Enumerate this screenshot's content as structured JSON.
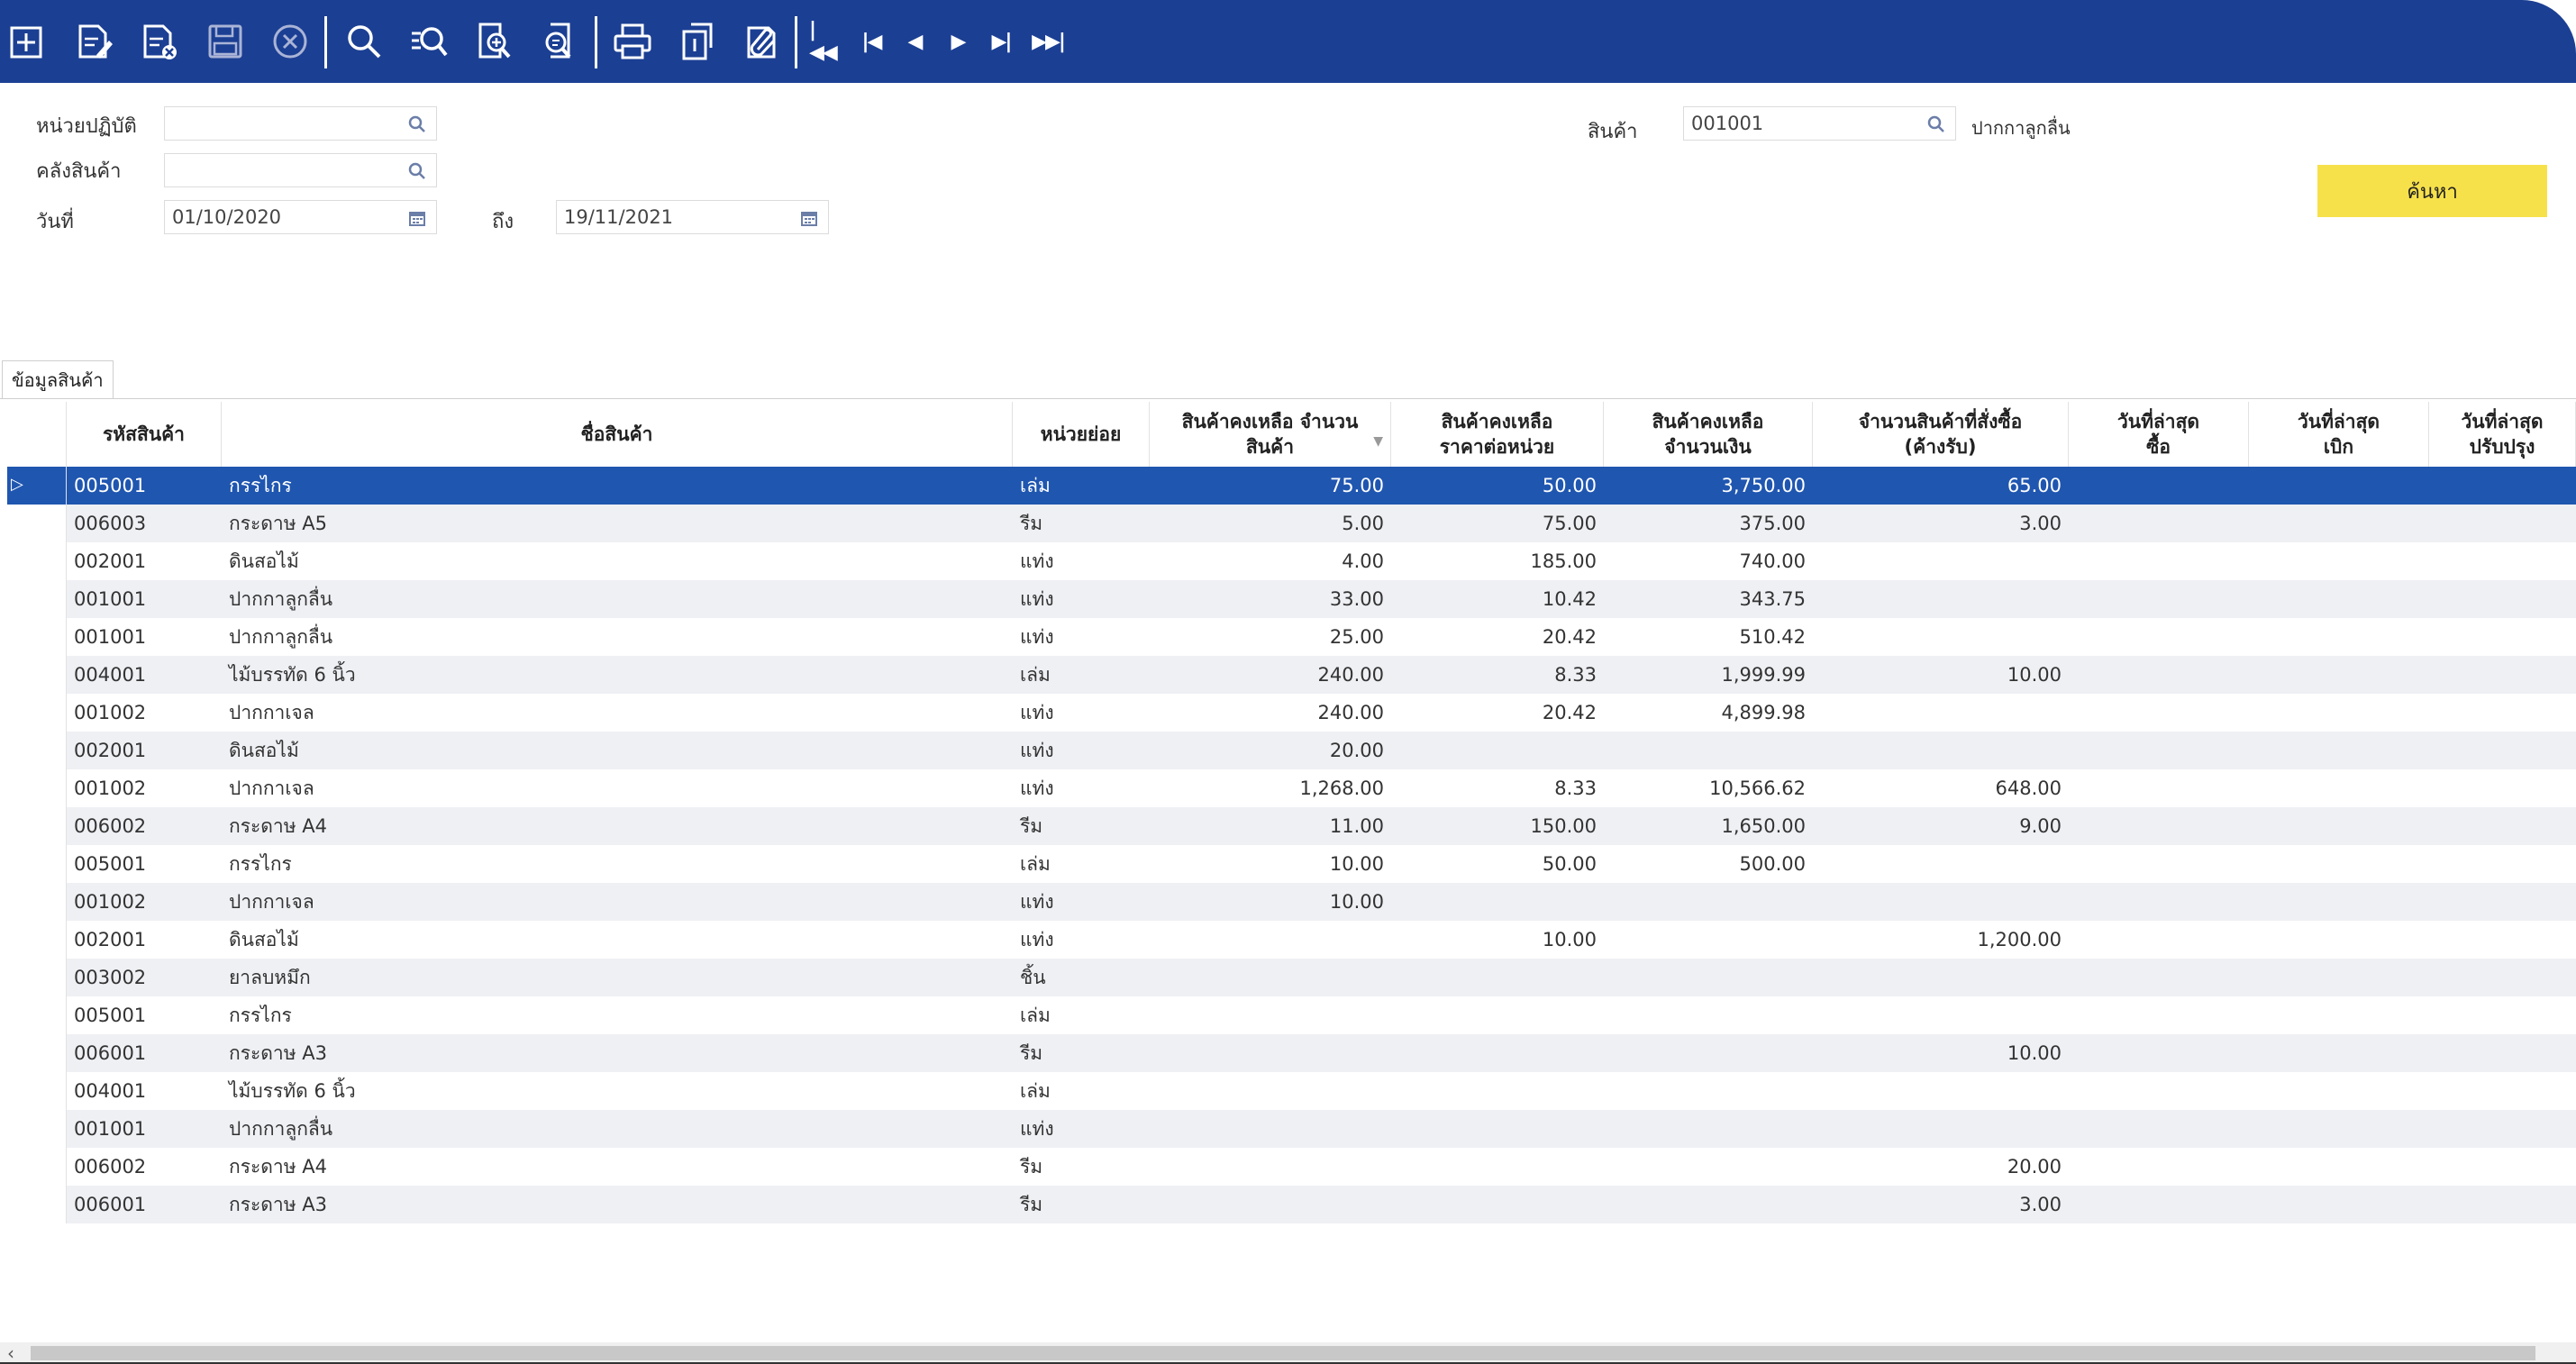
{
  "toolbar": {
    "buttons": [
      "add-icon",
      "edit-icon",
      "delete-icon",
      "save-icon",
      "cancel-icon",
      "search-icon",
      "search-list-icon",
      "zoom-in-doc-icon",
      "search-doc-icon",
      "print-icon",
      "copy-icon",
      "attach-icon"
    ],
    "nav": {
      "first": "|◀◀",
      "prev_page": "|◀",
      "prev": "◀",
      "next": "▶",
      "next_page": "▶|",
      "last": "▶▶|"
    }
  },
  "filters": {
    "unit_label": "หน่วยปฏิบัติ",
    "unit_value": "",
    "warehouse_label": "คลังสินค้า",
    "warehouse_value": "",
    "date_label": "วันที่",
    "date_from": "01/10/2020",
    "to_label": "ถึง",
    "date_to": "19/11/2021",
    "product_label": "สินค้า",
    "product_code": "001001",
    "product_name": "ปากกาลูกลื่น",
    "search_button": "ค้นหา"
  },
  "tab_label": "ข้อมูลสินค้า",
  "columns": [
    "รหัสสินค้า",
    "ชื่อสินค้า",
    "หน่วยย่อย",
    "สินค้าคงเหลือ จำนวนสินค้า",
    "สินค้าคงเหลือ ราคาต่อหน่วย",
    "สินค้าคงเหลือ จำนวนเงิน",
    "จำนวนสินค้าที่สั่งซื้อ (ค้างรับ)",
    "วันที่ล่าสุด ซื้อ",
    "วันที่ล่าสุด เบิก",
    "วันที่ล่าสุด ปรับปรุง"
  ],
  "rows": [
    {
      "code": "005001",
      "name": "กรรไกร",
      "unit": "เล่ม",
      "qty": "75.00",
      "price": "50.00",
      "amount": "3,750.00",
      "ordered": "65.00",
      "selected": true
    },
    {
      "code": "006003",
      "name": "กระดาษ A5",
      "unit": "รีม",
      "qty": "5.00",
      "price": "75.00",
      "amount": "375.00",
      "ordered": "3.00"
    },
    {
      "code": "002001",
      "name": "ดินสอไม้",
      "unit": "แท่ง",
      "qty": "4.00",
      "price": "185.00",
      "amount": "740.00",
      "ordered": ""
    },
    {
      "code": "001001",
      "name": "ปากกาลูกลื่น",
      "unit": "แท่ง",
      "qty": "33.00",
      "price": "10.42",
      "amount": "343.75",
      "ordered": ""
    },
    {
      "code": "001001",
      "name": "ปากกาลูกลื่น",
      "unit": "แท่ง",
      "qty": "25.00",
      "price": "20.42",
      "amount": "510.42",
      "ordered": ""
    },
    {
      "code": "004001",
      "name": "ไม้บรรทัด 6 นิ้ว",
      "unit": "เล่ม",
      "qty": "240.00",
      "price": "8.33",
      "amount": "1,999.99",
      "ordered": "10.00"
    },
    {
      "code": "001002",
      "name": "ปากกาเจล",
      "unit": "แท่ง",
      "qty": "240.00",
      "price": "20.42",
      "amount": "4,899.98",
      "ordered": ""
    },
    {
      "code": "002001",
      "name": "ดินสอไม้",
      "unit": "แท่ง",
      "qty": "20.00",
      "price": "",
      "amount": "",
      "ordered": ""
    },
    {
      "code": "001002",
      "name": "ปากกาเจล",
      "unit": "แท่ง",
      "qty": "1,268.00",
      "price": "8.33",
      "amount": "10,566.62",
      "ordered": "648.00"
    },
    {
      "code": "006002",
      "name": "กระดาษ A4",
      "unit": "รีม",
      "qty": "11.00",
      "price": "150.00",
      "amount": "1,650.00",
      "ordered": "9.00"
    },
    {
      "code": "005001",
      "name": "กรรไกร",
      "unit": "เล่ม",
      "qty": "10.00",
      "price": "50.00",
      "amount": "500.00",
      "ordered": ""
    },
    {
      "code": "001002",
      "name": "ปากกาเจล",
      "unit": "แท่ง",
      "qty": "10.00",
      "price": "",
      "amount": "",
      "ordered": ""
    },
    {
      "code": "002001",
      "name": "ดินสอไม้",
      "unit": "แท่ง",
      "qty": "",
      "price": "10.00",
      "amount": "",
      "ordered": "1,200.00"
    },
    {
      "code": "003002",
      "name": "ยาลบหมึก",
      "unit": "ชิ้น",
      "qty": "",
      "price": "",
      "amount": "",
      "ordered": ""
    },
    {
      "code": "005001",
      "name": "กรรไกร",
      "unit": "เล่ม",
      "qty": "",
      "price": "",
      "amount": "",
      "ordered": ""
    },
    {
      "code": "006001",
      "name": "กระดาษ A3",
      "unit": "รีม",
      "qty": "",
      "price": "",
      "amount": "",
      "ordered": "10.00"
    },
    {
      "code": "004001",
      "name": "ไม้บรรทัด 6 นิ้ว",
      "unit": "เล่ม",
      "qty": "",
      "price": "",
      "amount": "",
      "ordered": ""
    },
    {
      "code": "001001",
      "name": "ปากกาลูกลื่น",
      "unit": "แท่ง",
      "qty": "",
      "price": "",
      "amount": "",
      "ordered": ""
    },
    {
      "code": "006002",
      "name": "กระดาษ A4",
      "unit": "รีม",
      "qty": "",
      "price": "",
      "amount": "",
      "ordered": "20.00"
    },
    {
      "code": "006001",
      "name": "กระดาษ A3",
      "unit": "รีม",
      "qty": "",
      "price": "",
      "amount": "",
      "ordered": "3.00"
    }
  ],
  "colors": {
    "toolbar": "#1b3f93",
    "selected_row": "#1f56b0",
    "search_button": "#f7e14b",
    "alt_row": "#eff0f4"
  }
}
